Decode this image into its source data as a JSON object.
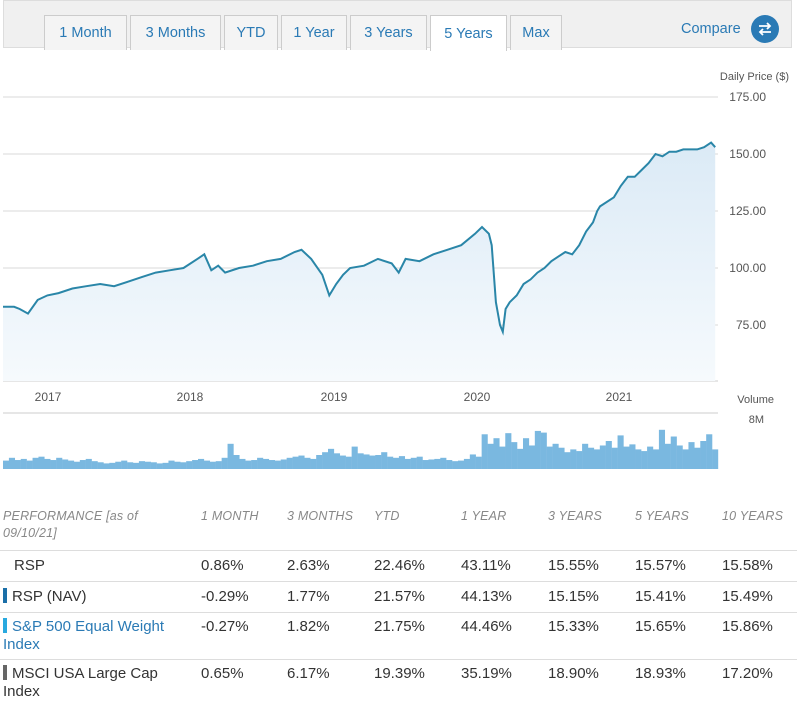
{
  "tabs": [
    {
      "label": "1 Month",
      "active": false
    },
    {
      "label": "3 Months",
      "active": false
    },
    {
      "label": "YTD",
      "active": false
    },
    {
      "label": "1 Year",
      "active": false
    },
    {
      "label": "3 Years",
      "active": false
    },
    {
      "label": "5 Years",
      "active": true
    },
    {
      "label": "Max",
      "active": false
    }
  ],
  "compare_label": "Compare",
  "colors": {
    "accent": "#2a7ab5",
    "line": "#2a86a8",
    "volume": "#7ab8e0",
    "nav": "#1b6fa8",
    "index": "#29a9df",
    "msci": "#666666"
  },
  "chart_data": [
    {
      "type": "line",
      "ylabel": "Daily Price ($)",
      "y_ticks": [
        "175.00",
        "150.00",
        "125.00",
        "100.00",
        "75.00"
      ],
      "ylim": [
        50,
        180
      ],
      "x_ticks": [
        "2017",
        "2018",
        "2019",
        "2020",
        "2021"
      ],
      "xlim": [
        2016.6,
        2021.75
      ],
      "grid": true,
      "series": [
        {
          "x": [
            2016.6,
            2016.68,
            2016.72,
            2016.78,
            2016.85,
            2016.92,
            2017.0,
            2017.1,
            2017.2,
            2017.3,
            2017.4,
            2017.5,
            2017.6,
            2017.7,
            2017.8,
            2017.9,
            2018.0,
            2018.05,
            2018.1,
            2018.15,
            2018.2,
            2018.3,
            2018.4,
            2018.5,
            2018.6,
            2018.7,
            2018.75,
            2018.82,
            2018.9,
            2018.95,
            2019.0,
            2019.05,
            2019.1,
            2019.2,
            2019.3,
            2019.4,
            2019.45,
            2019.5,
            2019.6,
            2019.7,
            2019.8,
            2019.9,
            2020.0,
            2020.05,
            2020.1,
            2020.12,
            2020.15,
            2020.18,
            2020.2,
            2020.22,
            2020.25,
            2020.3,
            2020.35,
            2020.4,
            2020.45,
            2020.5,
            2020.55,
            2020.6,
            2020.65,
            2020.7,
            2020.75,
            2020.8,
            2020.85,
            2020.88,
            2020.9,
            2021.0,
            2021.05,
            2021.1,
            2021.15,
            2021.2,
            2021.25,
            2021.3,
            2021.35,
            2021.4,
            2021.45,
            2021.5,
            2021.55,
            2021.6,
            2021.65,
            2021.7,
            2021.73
          ],
          "y": [
            83,
            83,
            82,
            80,
            86,
            88,
            89,
            91,
            92,
            93,
            92,
            94,
            96,
            98,
            99,
            100,
            104,
            106,
            99,
            101,
            98,
            100,
            101,
            103,
            104,
            107,
            108,
            104,
            97,
            88,
            93,
            97,
            100,
            101,
            104,
            102,
            98,
            104,
            103,
            106,
            108,
            110,
            115,
            118,
            115,
            110,
            85,
            75,
            72,
            82,
            85,
            88,
            93,
            95,
            98,
            100,
            103,
            105,
            107,
            106,
            110,
            116,
            120,
            125,
            127,
            131,
            136,
            140,
            140,
            143,
            146,
            150,
            149,
            151,
            151,
            152,
            152,
            152,
            153,
            155,
            153
          ],
          "name": "RSP"
        }
      ]
    },
    {
      "type": "bar",
      "ylabel": "Volume",
      "y_ticks": [
        "8M"
      ],
      "ylim": [
        0,
        10
      ],
      "values": [
        1.5,
        2.0,
        1.6,
        1.8,
        1.5,
        2.0,
        2.2,
        1.8,
        1.6,
        2.0,
        1.7,
        1.5,
        1.3,
        1.6,
        1.8,
        1.4,
        1.2,
        1.0,
        1.1,
        1.3,
        1.5,
        1.2,
        1.1,
        1.4,
        1.3,
        1.2,
        1.0,
        1.1,
        1.5,
        1.3,
        1.2,
        1.4,
        1.6,
        1.8,
        1.5,
        1.3,
        1.4,
        2.0,
        4.5,
        2.5,
        1.8,
        1.5,
        1.6,
        2.0,
        1.8,
        1.6,
        1.5,
        1.7,
        2.0,
        2.2,
        2.4,
        2.0,
        1.8,
        2.5,
        3.0,
        3.6,
        2.8,
        2.4,
        2.2,
        4.0,
        2.8,
        2.6,
        2.4,
        2.5,
        3.0,
        2.2,
        2.0,
        2.3,
        1.8,
        2.0,
        2.2,
        1.6,
        1.7,
        1.8,
        2.0,
        1.6,
        1.4,
        1.5,
        1.8,
        2.6,
        2.2,
        6.2,
        4.5,
        5.5,
        4.0,
        6.4,
        4.8,
        3.6,
        5.5,
        4.2,
        6.8,
        6.5,
        4.0,
        4.5,
        3.8,
        3.0,
        3.5,
        3.2,
        4.5,
        3.8,
        3.5,
        4.2,
        5.0,
        3.8,
        6.0,
        4.0,
        4.4,
        3.5,
        3.2,
        4.0,
        3.5,
        7.0,
        4.5,
        5.8,
        4.2,
        3.5,
        4.8,
        3.8,
        5.0,
        6.2,
        3.5
      ]
    }
  ],
  "performance": {
    "header": [
      "PERFORMANCE [as of",
      "09/10/21]",
      "1 MONTH",
      "3 MONTHS",
      "YTD",
      "1 YEAR",
      "3 YEARS",
      "5 YEARS",
      "10 YEARS"
    ],
    "rows": [
      {
        "name_line1": "RSP",
        "name_line2": "",
        "values": [
          "0.86%",
          "2.63%",
          "22.46%",
          "43.11%",
          "15.55%",
          "15.57%",
          "15.58%"
        ]
      },
      {
        "name_line1": "RSP (NAV)",
        "name_line2": "",
        "values": [
          "-0.29%",
          "1.77%",
          "21.57%",
          "44.13%",
          "15.15%",
          "15.41%",
          "15.49%"
        ]
      },
      {
        "name_line1": "S&P 500 Equal Weight",
        "name_line2": "Index",
        "values": [
          "-0.27%",
          "1.82%",
          "21.75%",
          "44.46%",
          "15.33%",
          "15.65%",
          "15.86%"
        ]
      },
      {
        "name_line1": "MSCI USA Large Cap",
        "name_line2": "Index",
        "values": [
          "0.65%",
          "6.17%",
          "19.39%",
          "35.19%",
          "18.90%",
          "18.93%",
          "17.20%"
        ]
      }
    ]
  }
}
